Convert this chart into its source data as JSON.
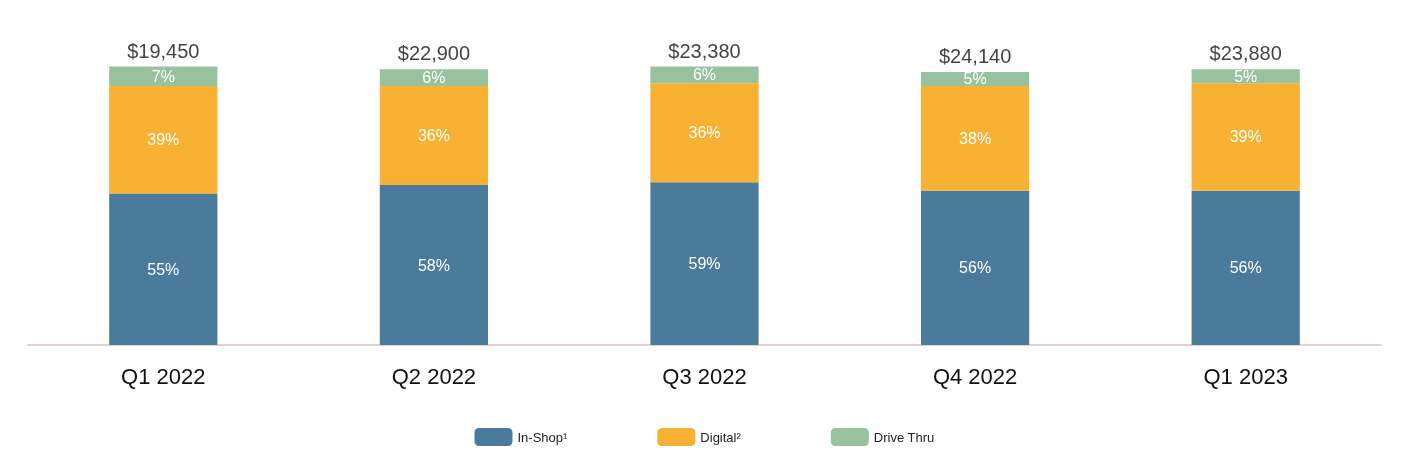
{
  "chart_data": {
    "type": "bar",
    "stacked": true,
    "categories": [
      "Q1 2022",
      "Q2 2022",
      "Q3 2022",
      "Q4 2022",
      "Q1 2023"
    ],
    "series": [
      {
        "name": "In-Shop¹",
        "color": "#4a7a9c",
        "values": [
          55,
          58,
          59,
          56,
          56
        ],
        "value_labels": [
          "55%",
          "58%",
          "59%",
          "56%",
          "56%"
        ]
      },
      {
        "name": "Digital²",
        "color": "#f8b133",
        "values": [
          39,
          36,
          36,
          38,
          39
        ],
        "value_labels": [
          "39%",
          "36%",
          "36%",
          "38%",
          "39%"
        ]
      },
      {
        "name": "Drive Thru",
        "color": "#98c19e",
        "values": [
          7,
          6,
          6,
          5,
          5
        ],
        "value_labels": [
          "7%",
          "6%",
          "6%",
          "5%",
          "5%"
        ]
      }
    ],
    "annotations": [
      {
        "text": "$19,450",
        "x": "Q1 2022",
        "y": 101
      },
      {
        "text": "$22,900",
        "x": "Q2 2022",
        "y": 100
      },
      {
        "text": "$23,380",
        "x": "Q3 2022",
        "y": 101
      },
      {
        "text": "$24,140",
        "x": "Q4 2022",
        "y": 99
      },
      {
        "text": "$23,880",
        "x": "Q1 2023",
        "y": 100
      }
    ],
    "tick_labels": "x",
    "legend": "bottom"
  }
}
